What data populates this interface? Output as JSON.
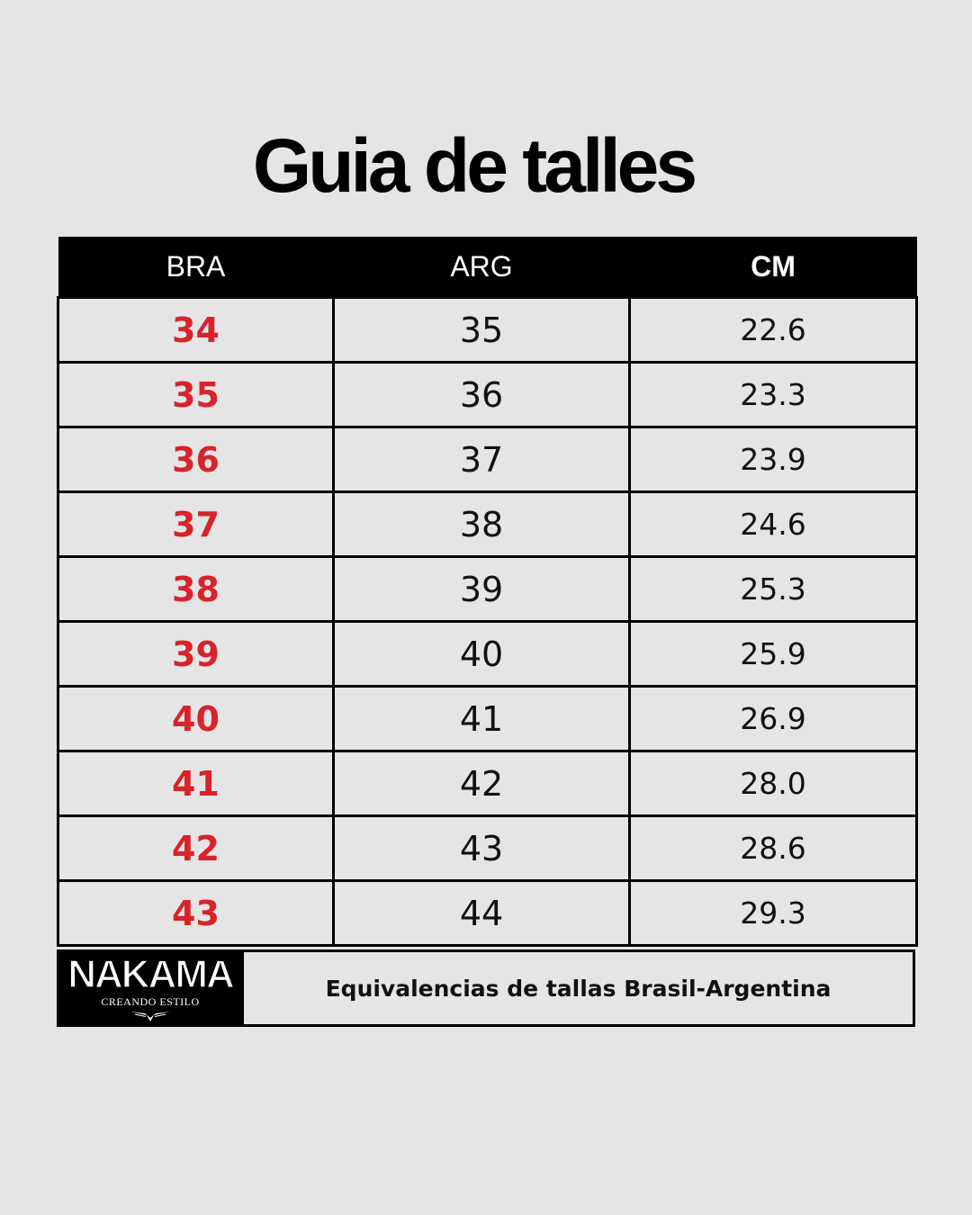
{
  "title": "Guia de talles",
  "table": {
    "headers": {
      "bra": "BRA",
      "arg": "ARG",
      "cm": "CM"
    },
    "rows": [
      {
        "bra": "34",
        "arg": "35",
        "cm": "22.6"
      },
      {
        "bra": "35",
        "arg": "36",
        "cm": "23.3"
      },
      {
        "bra": "36",
        "arg": "37",
        "cm": "23.9"
      },
      {
        "bra": "37",
        "arg": "38",
        "cm": "24.6"
      },
      {
        "bra": "38",
        "arg": "39",
        "cm": "25.3"
      },
      {
        "bra": "39",
        "arg": "40",
        "cm": "25.9"
      },
      {
        "bra": "40",
        "arg": "41",
        "cm": "26.9"
      },
      {
        "bra": "41",
        "arg": "42",
        "cm": "28.0"
      },
      {
        "bra": "42",
        "arg": "43",
        "cm": "28.6"
      },
      {
        "bra": "43",
        "arg": "44",
        "cm": "29.3"
      }
    ]
  },
  "footer": {
    "logo_text": "NAKAMA",
    "logo_tagline": "CREANDO ESTILO",
    "logo_emblem": "winged-emblem",
    "caption": "Equivalencias de tallas Brasil-Argentina"
  },
  "colors": {
    "background": "#e5e5e5",
    "header_bg": "#000000",
    "bra_accent": "#d8232a",
    "text": "#111111"
  }
}
